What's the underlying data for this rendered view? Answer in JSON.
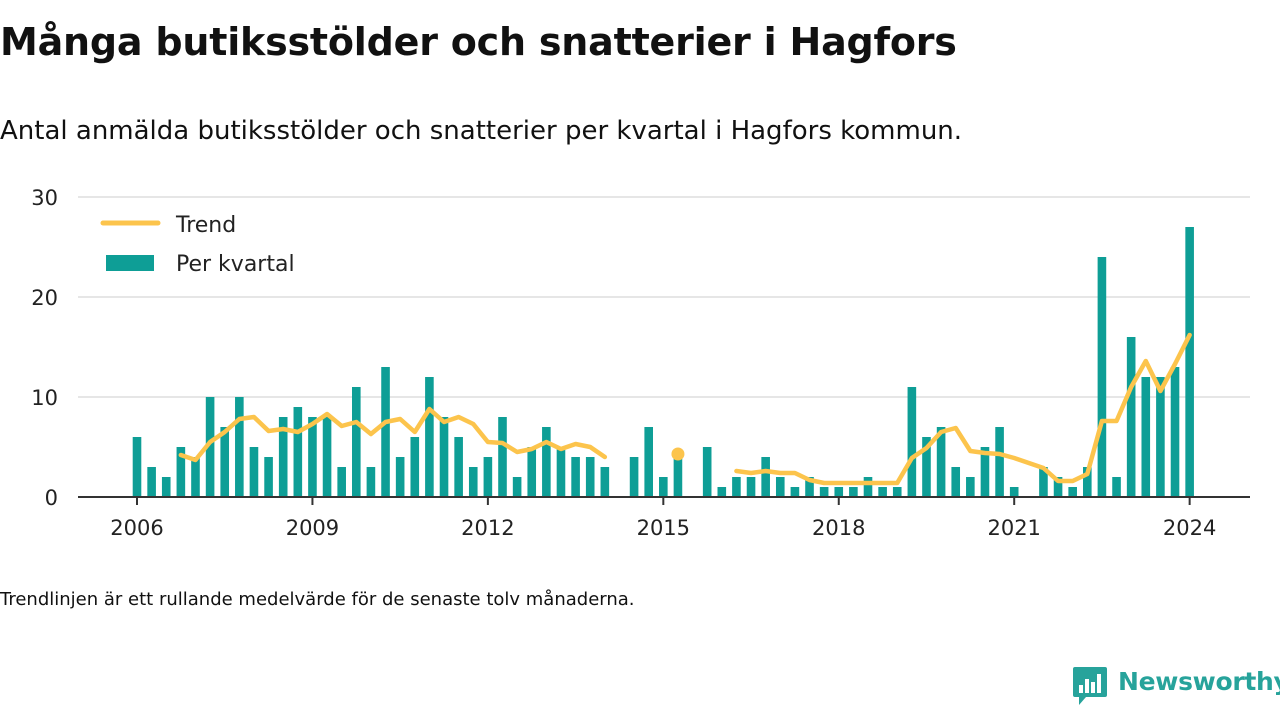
{
  "title": "Många butiksstölder och snatterier i Hagfors",
  "subtitle": "Antal anmälda butiksstölder och snatterier per kvartal i Hagfors kommun.",
  "note": "Trendlinjen är ett rullande medelvärde för de senaste tolv månaderna.",
  "brand": {
    "name": "Newsworthy",
    "logo_icon": "bar-chart-speech-bubble-icon"
  },
  "colors": {
    "bars": "#0e9e96",
    "trend": "#fcc44c",
    "axis": "#333333",
    "grid": "#dddddd",
    "brand": "#27a39b"
  },
  "chart_data": {
    "type": "bar",
    "ylim": [
      0,
      30
    ],
    "yticks": [
      0,
      10,
      20,
      30
    ],
    "xticks": [
      "2006",
      "2009",
      "2012",
      "2015",
      "2018",
      "2021",
      "2024"
    ],
    "grid": true,
    "legend_position": "top-left",
    "categories": [
      "2006 Q1",
      "2006 Q2",
      "2006 Q3",
      "2006 Q4",
      "2007 Q1",
      "2007 Q2",
      "2007 Q3",
      "2007 Q4",
      "2008 Q1",
      "2008 Q2",
      "2008 Q3",
      "2008 Q4",
      "2009 Q1",
      "2009 Q2",
      "2009 Q3",
      "2009 Q4",
      "2010 Q1",
      "2010 Q2",
      "2010 Q3",
      "2010 Q4",
      "2011 Q1",
      "2011 Q2",
      "2011 Q3",
      "2011 Q4",
      "2012 Q1",
      "2012 Q2",
      "2012 Q3",
      "2012 Q4",
      "2013 Q1",
      "2013 Q2",
      "2013 Q3",
      "2013 Q4",
      "2014 Q1",
      "2014 Q2",
      "2014 Q3",
      "2014 Q4",
      "2015 Q1",
      "2015 Q2",
      "2015 Q3",
      "2015 Q4",
      "2016 Q1",
      "2016 Q2",
      "2016 Q3",
      "2016 Q4",
      "2017 Q1",
      "2017 Q2",
      "2017 Q3",
      "2017 Q4",
      "2018 Q1",
      "2018 Q2",
      "2018 Q3",
      "2018 Q4",
      "2019 Q1",
      "2019 Q2",
      "2019 Q3",
      "2019 Q4",
      "2020 Q1",
      "2020 Q2",
      "2020 Q3",
      "2020 Q4",
      "2021 Q1",
      "2021 Q2",
      "2021 Q3",
      "2021 Q4",
      "2022 Q1",
      "2022 Q2",
      "2022 Q3",
      "2022 Q4",
      "2023 Q1",
      "2023 Q2",
      "2023 Q3",
      "2023 Q4",
      "2024 Q1"
    ],
    "series": [
      {
        "name": "Per kvartal",
        "type": "bar",
        "values": [
          6,
          3,
          2,
          5,
          4,
          10,
          7,
          10,
          5,
          4,
          8,
          9,
          8,
          8,
          3,
          11,
          3,
          13,
          4,
          6,
          12,
          8,
          6,
          3,
          4,
          8,
          2,
          5,
          7,
          5,
          4,
          4,
          3,
          0,
          4,
          7,
          2,
          4,
          0,
          5,
          1,
          2,
          2,
          4,
          2,
          1,
          2,
          1,
          1,
          1,
          2,
          1,
          1,
          11,
          6,
          7,
          3,
          2,
          5,
          7,
          1,
          0,
          3,
          2,
          1,
          3,
          24,
          2,
          16,
          12,
          12,
          13,
          27
        ]
      },
      {
        "name": "Trend",
        "type": "line",
        "values": [
          null,
          null,
          null,
          4.2,
          3.7,
          5.5,
          6.5,
          7.8,
          8.0,
          6.6,
          6.8,
          6.5,
          7.3,
          8.3,
          7.1,
          7.5,
          6.3,
          7.5,
          7.8,
          6.5,
          8.8,
          7.5,
          8.0,
          7.3,
          5.5,
          5.4,
          4.5,
          4.8,
          5.5,
          4.8,
          5.3,
          5.0,
          4.0,
          null,
          null,
          null,
          null,
          4.3,
          null,
          null,
          null,
          2.6,
          2.4,
          2.6,
          2.4,
          2.4,
          1.7,
          1.4,
          1.4,
          1.4,
          1.4,
          1.4,
          1.4,
          3.9,
          4.9,
          6.5,
          6.9,
          4.6,
          4.4,
          4.3,
          3.9,
          3.4,
          2.9,
          1.6,
          1.6,
          2.3,
          7.6,
          7.6,
          11.0,
          13.6,
          10.6,
          13.3,
          16.2
        ]
      }
    ]
  }
}
